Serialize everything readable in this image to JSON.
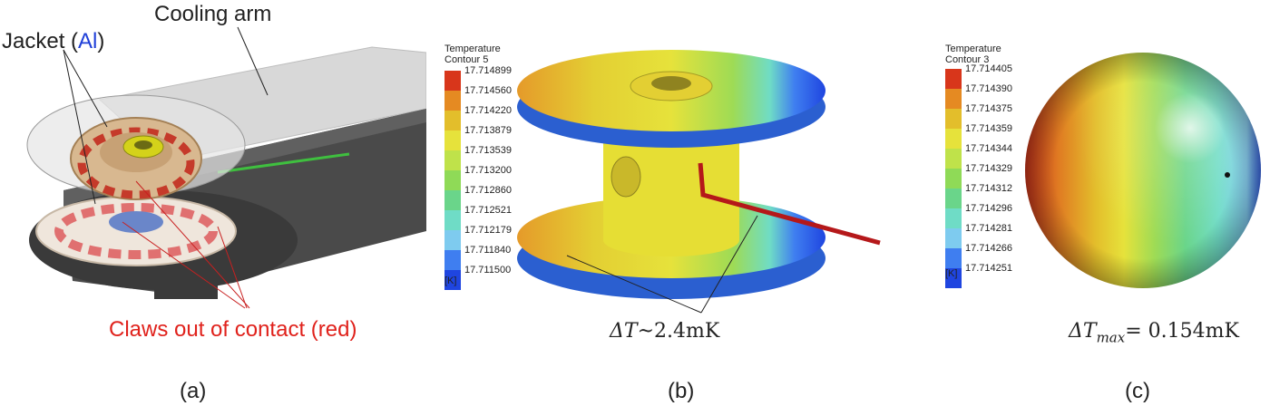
{
  "panel_a": {
    "jacket_prefix": "Jacket (",
    "jacket_material": "Al",
    "jacket_suffix": ")",
    "cooling_arm": "Cooling arm",
    "claws": "Claws out of contact (red)",
    "caption": "(a)",
    "colors": {
      "material": "#1f3fd8",
      "claws": "#e0221c"
    }
  },
  "panel_b": {
    "legend_title": "Temperature",
    "legend_subtitle": "Contour 5",
    "unit": "[K]",
    "ticks": [
      "17.714899",
      "17.714560",
      "17.714220",
      "17.713879",
      "17.713539",
      "17.713200",
      "17.712860",
      "17.712521",
      "17.712179",
      "17.711840",
      "17.711500"
    ],
    "delta_prefix": "ΔT",
    "delta_value": "~2.4mK",
    "caption": "(b)"
  },
  "panel_c": {
    "legend_title": "Temperature",
    "legend_subtitle": "Contour 3",
    "unit": "[K]",
    "ticks": [
      "17.714405",
      "17.714390",
      "17.714375",
      "17.714359",
      "17.714344",
      "17.714329",
      "17.714312",
      "17.714296",
      "17.714281",
      "17.714266",
      "17.714251"
    ],
    "delta_prefix": "ΔT",
    "delta_sub": "max",
    "delta_value": "= 0.154mK",
    "caption": "(c)"
  },
  "colormap": [
    "#d8361b",
    "#e58a22",
    "#e3be2b",
    "#e6e23b",
    "#bfe24a",
    "#8fda57",
    "#6ad58a",
    "#6fdcc6",
    "#7ecbef",
    "#3f7ef0",
    "#1f45e0"
  ]
}
